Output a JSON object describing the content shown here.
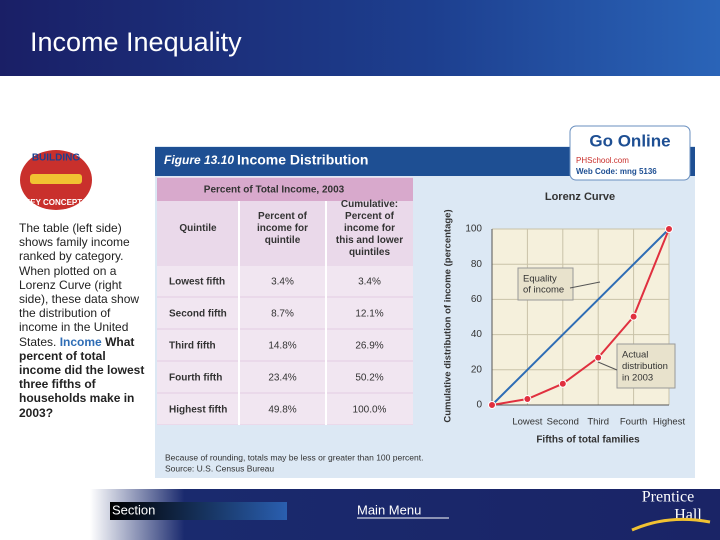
{
  "header": {
    "title": "Income Inequality"
  },
  "logo": {
    "top": "BUILDING",
    "bottom": "KEY CONCEPTS"
  },
  "sidebar": {
    "body": "The table (left side) shows family income ranked by category. When plotted on a Lorenz Curve (right side), these data show the distribution of income in the United States.",
    "label": "Income",
    "question": "What percent of total income did the lowest three fifths of households make in 2003?"
  },
  "figure": {
    "number": "Figure 13.10",
    "title": "Income Distribution",
    "badge": {
      "name": "Go Online",
      "site": "PHSchool.com",
      "code": "Web Code: mng 5136"
    },
    "table": {
      "caption": "Percent of Total Income, 2003",
      "columns": [
        "Quintile",
        "Percent of income for quintile",
        "Cumulative: Percent of income for this and lower quintiles"
      ],
      "rows": [
        [
          "Lowest fifth",
          "3.4%",
          "3.4%"
        ],
        [
          "Second fifth",
          "8.7%",
          "12.1%"
        ],
        [
          "Third fifth",
          "14.8%",
          "26.9%"
        ],
        [
          "Fourth fifth",
          "23.4%",
          "50.2%"
        ],
        [
          "Highest fifth",
          "49.8%",
          "100.0%"
        ]
      ]
    },
    "notes": [
      "Because of rounding, totals may be less or greater than 100 percent.",
      "Source: U.S. Census Bureau"
    ],
    "chart": {
      "type": "line",
      "title": "Lorenz Curve",
      "x_label": "Fifths of total families",
      "y_label": "Cumulative distribution of income (percentage)",
      "categories": [
        null,
        "Lowest",
        "Second",
        "Third",
        "Fourth",
        "Highest"
      ],
      "series": [
        {
          "name": "Equality of income",
          "color": "#2f6db5",
          "values": [
            0,
            20,
            40,
            60,
            80,
            100
          ]
        },
        {
          "name": "Actual distribution in 2003",
          "color": "#e0303f",
          "values": [
            0,
            3.4,
            12.1,
            26.9,
            50.2,
            100
          ],
          "markers": true
        }
      ],
      "ylim": [
        0,
        100
      ],
      "yticks": [
        0,
        20,
        40,
        60,
        80,
        100
      ],
      "grid": true
    }
  },
  "footer": {
    "section": "Section",
    "menu": "Main Menu",
    "brand_top": "Prentice",
    "brand_bottom": "Hall"
  }
}
